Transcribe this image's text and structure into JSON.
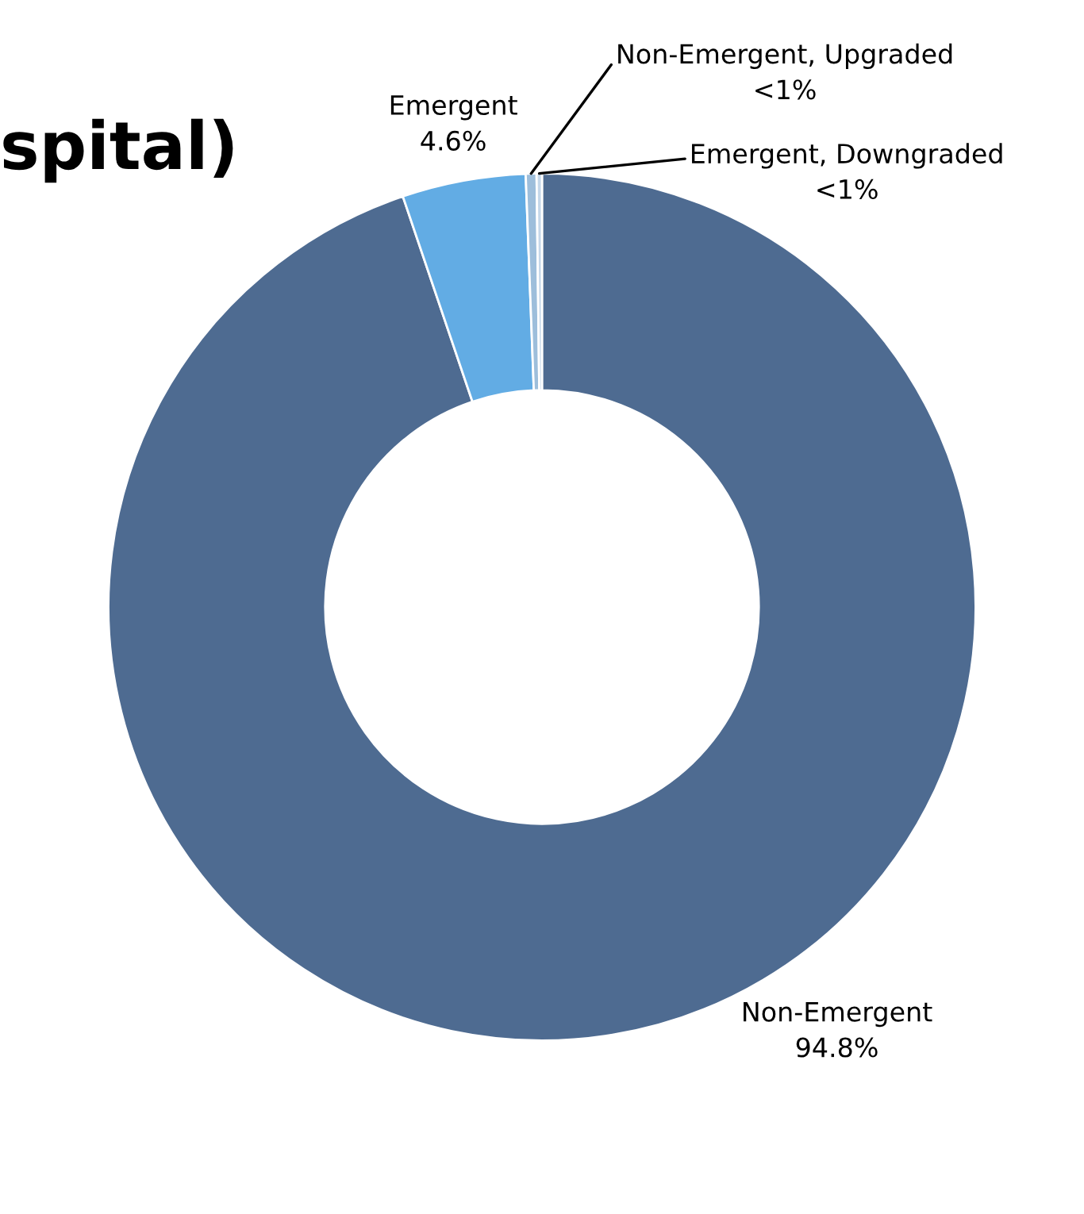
{
  "chart_data": {
    "type": "donut",
    "title": "spital)",
    "categories": [
      "Non-Emergent",
      "Emergent",
      "Non-Emergent, Upgraded",
      "Emergent, Downgraded"
    ],
    "values": [
      94.8,
      4.6,
      0.4,
      0.2
    ],
    "value_labels": [
      "94.8%",
      "4.6%",
      "<1%",
      "<1%"
    ],
    "colors": [
      "#4e6b91",
      "#62ace4",
      "#9dbedb",
      "#c6d8ea"
    ],
    "legend": false
  }
}
